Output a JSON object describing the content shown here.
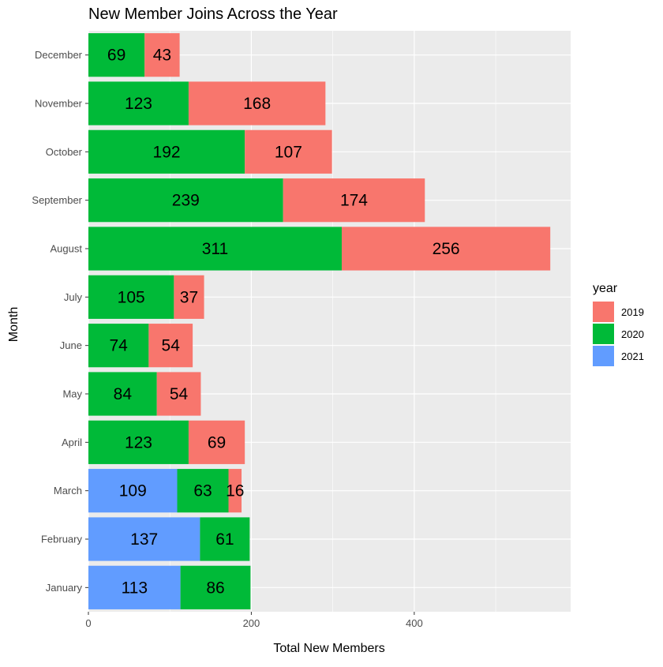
{
  "chart_data": {
    "type": "bar",
    "orientation": "horizontal",
    "stacked": true,
    "title": "New Member Joins Across the Year",
    "xlabel": "Total New Members",
    "ylabel": "Month",
    "xlim": [
      0,
      592
    ],
    "x_ticks": [
      0,
      200,
      400
    ],
    "categories": [
      "January",
      "February",
      "March",
      "April",
      "May",
      "June",
      "July",
      "August",
      "September",
      "October",
      "November",
      "December"
    ],
    "series": [
      {
        "name": "2021",
        "color": "#619CFF",
        "values": [
          113,
          137,
          109,
          0,
          0,
          0,
          0,
          0,
          0,
          0,
          0,
          0
        ]
      },
      {
        "name": "2020",
        "color": "#00BA38",
        "values": [
          86,
          61,
          63,
          123,
          84,
          74,
          105,
          311,
          239,
          192,
          123,
          69
        ]
      },
      {
        "name": "2019",
        "color": "#F8766D",
        "values": [
          0,
          0,
          16,
          69,
          54,
          54,
          37,
          256,
          174,
          107,
          168,
          43
        ]
      }
    ],
    "legend": {
      "title": "year",
      "position": "right",
      "entries": [
        {
          "name": "2019",
          "color": "#F8766D"
        },
        {
          "name": "2020",
          "color": "#00BA38"
        },
        {
          "name": "2021",
          "color": "#619CFF"
        }
      ]
    },
    "grid": true,
    "panel_background": "#EBEBEB"
  }
}
